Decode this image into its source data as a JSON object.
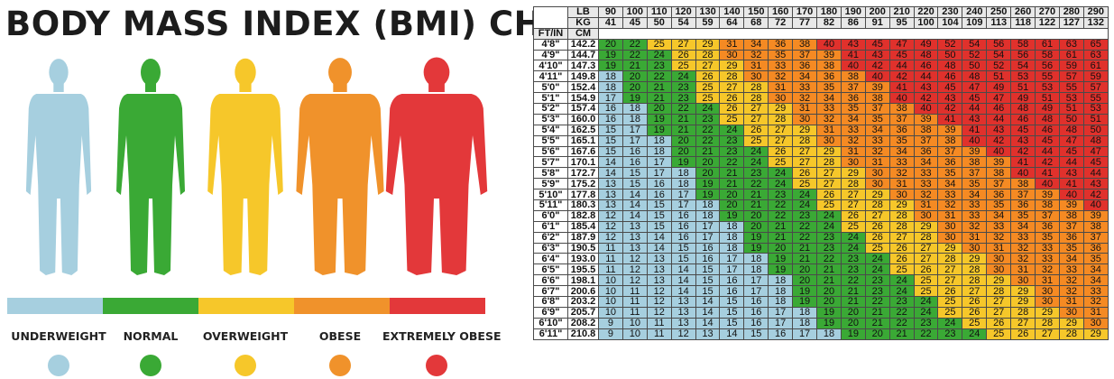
{
  "title": "BODY MASS INDEX (BMI) CHART",
  "colors": {
    "underweight": "#a6cfdf",
    "normal": "#3aa935",
    "overweight": "#f6c72a",
    "obese": "#f0922b",
    "extremely_obese": "#e3383a",
    "extreme_cell": "#e0312c",
    "obese_cell": "#f58a23"
  },
  "legend": [
    {
      "label": "UNDERWEIGHT",
      "key": "underweight"
    },
    {
      "label": "NORMAL",
      "key": "normal"
    },
    {
      "label": "OVERWEIGHT",
      "key": "overweight"
    },
    {
      "label": "OBESE",
      "key": "obese"
    },
    {
      "label": "EXTREMELY OBESE",
      "key": "extremely_obese"
    }
  ],
  "chart_data": {
    "type": "table",
    "row_header_labels": [
      "LB",
      "KG",
      "FT/IN",
      "CM"
    ],
    "weights_lb": [
      "90",
      "100",
      "110",
      "120",
      "130",
      "140",
      "150",
      "160",
      "170",
      "180",
      "190",
      "200",
      "210",
      "220",
      "230",
      "240",
      "250",
      "260",
      "270",
      "280",
      "290"
    ],
    "weights_kg": [
      "41",
      "45",
      "50",
      "54",
      "59",
      "64",
      "68",
      "72",
      "77",
      "82",
      "86",
      "91",
      "95",
      "100",
      "104",
      "109",
      "113",
      "118",
      "122",
      "127",
      "132"
    ],
    "rows": [
      {
        "ftin": "4'8\"",
        "cm": "142.2",
        "bmi": [
          20,
          22,
          25,
          27,
          29,
          31,
          34,
          36,
          38,
          40,
          43,
          45,
          47,
          49,
          52,
          54,
          56,
          58,
          61,
          63,
          65
        ]
      },
      {
        "ftin": "4'9\"",
        "cm": "144.7",
        "bmi": [
          19,
          22,
          24,
          26,
          28,
          30,
          32,
          35,
          37,
          39,
          41,
          43,
          45,
          48,
          50,
          52,
          54,
          56,
          58,
          61,
          63
        ]
      },
      {
        "ftin": "4'10\"",
        "cm": "147.3",
        "bmi": [
          19,
          21,
          23,
          25,
          27,
          29,
          31,
          33,
          36,
          38,
          40,
          42,
          44,
          46,
          48,
          50,
          52,
          54,
          56,
          59,
          61
        ]
      },
      {
        "ftin": "4'11\"",
        "cm": "149.8",
        "bmi": [
          18,
          20,
          22,
          24,
          26,
          28,
          30,
          32,
          34,
          36,
          38,
          40,
          42,
          44,
          46,
          48,
          51,
          53,
          55,
          57,
          59
        ]
      },
      {
        "ftin": "5'0\"",
        "cm": "152.4",
        "bmi": [
          18,
          20,
          21,
          23,
          25,
          27,
          28,
          31,
          33,
          35,
          37,
          39,
          41,
          43,
          45,
          47,
          49,
          51,
          53,
          55,
          57
        ]
      },
      {
        "ftin": "5'1\"",
        "cm": "154.9",
        "bmi": [
          17,
          19,
          21,
          23,
          25,
          26,
          28,
          30,
          32,
          34,
          36,
          38,
          40,
          42,
          43,
          45,
          47,
          49,
          51,
          53,
          55
        ]
      },
      {
        "ftin": "5'2\"",
        "cm": "157.4",
        "bmi": [
          16,
          18,
          20,
          22,
          24,
          26,
          27,
          29,
          31,
          33,
          35,
          37,
          38,
          40,
          42,
          44,
          46,
          48,
          49,
          51,
          53
        ]
      },
      {
        "ftin": "5'3\"",
        "cm": "160.0",
        "bmi": [
          16,
          18,
          19,
          21,
          23,
          25,
          27,
          28,
          30,
          32,
          34,
          35,
          37,
          39,
          41,
          43,
          44,
          46,
          48,
          50,
          51
        ]
      },
      {
        "ftin": "5'4\"",
        "cm": "162.5",
        "bmi": [
          15,
          17,
          19,
          21,
          22,
          24,
          26,
          27,
          29,
          31,
          33,
          34,
          36,
          38,
          39,
          41,
          43,
          45,
          46,
          48,
          50
        ]
      },
      {
        "ftin": "5'5\"",
        "cm": "165.1",
        "bmi": [
          15,
          17,
          18,
          20,
          22,
          23,
          25,
          27,
          28,
          30,
          32,
          33,
          35,
          37,
          38,
          40,
          42,
          43,
          45,
          47,
          48
        ]
      },
      {
        "ftin": "5'6\"",
        "cm": "167.6",
        "bmi": [
          15,
          16,
          18,
          20,
          21,
          23,
          24,
          26,
          27,
          29,
          31,
          32,
          34,
          36,
          37,
          39,
          40,
          42,
          44,
          45,
          47
        ]
      },
      {
        "ftin": "5'7\"",
        "cm": "170.1",
        "bmi": [
          14,
          16,
          17,
          19,
          20,
          22,
          24,
          25,
          27,
          28,
          30,
          31,
          33,
          34,
          36,
          38,
          39,
          41,
          42,
          44,
          45
        ]
      },
      {
        "ftin": "5'8\"",
        "cm": "172.7",
        "bmi": [
          14,
          15,
          17,
          18,
          20,
          21,
          23,
          24,
          26,
          27,
          29,
          30,
          32,
          33,
          35,
          37,
          38,
          40,
          41,
          43,
          44
        ]
      },
      {
        "ftin": "5'9\"",
        "cm": "175.2",
        "bmi": [
          13,
          15,
          16,
          18,
          19,
          21,
          22,
          24,
          25,
          27,
          28,
          30,
          31,
          33,
          34,
          35,
          37,
          38,
          40,
          41,
          43
        ]
      },
      {
        "ftin": "5'10\"",
        "cm": "177.8",
        "bmi": [
          13,
          14,
          16,
          17,
          19,
          20,
          21,
          23,
          24,
          26,
          27,
          29,
          30,
          32,
          33,
          34,
          36,
          37,
          39,
          40,
          42
        ]
      },
      {
        "ftin": "5'11\"",
        "cm": "180.3",
        "bmi": [
          13,
          14,
          15,
          17,
          18,
          20,
          21,
          22,
          24,
          25,
          27,
          28,
          29,
          31,
          32,
          33,
          35,
          36,
          38,
          39,
          40
        ]
      },
      {
        "ftin": "6'0\"",
        "cm": "182.8",
        "bmi": [
          12,
          14,
          15,
          16,
          18,
          19,
          20,
          22,
          23,
          24,
          26,
          27,
          28,
          30,
          31,
          33,
          34,
          35,
          37,
          38,
          39
        ]
      },
      {
        "ftin": "6'1\"",
        "cm": "185.4",
        "bmi": [
          12,
          13,
          15,
          16,
          17,
          18,
          20,
          21,
          22,
          24,
          25,
          26,
          28,
          29,
          30,
          32,
          33,
          34,
          36,
          37,
          38
        ]
      },
      {
        "ftin": "6'2\"",
        "cm": "187.9",
        "bmi": [
          12,
          13,
          14,
          16,
          17,
          18,
          19,
          21,
          22,
          23,
          24,
          26,
          27,
          28,
          30,
          31,
          32,
          33,
          35,
          36,
          37
        ]
      },
      {
        "ftin": "6'3\"",
        "cm": "190.5",
        "bmi": [
          11,
          13,
          14,
          15,
          16,
          18,
          19,
          20,
          21,
          23,
          24,
          25,
          26,
          27,
          29,
          30,
          31,
          32,
          33,
          35,
          36
        ]
      },
      {
        "ftin": "6'4\"",
        "cm": "193.0",
        "bmi": [
          11,
          12,
          13,
          15,
          16,
          17,
          18,
          19,
          21,
          22,
          23,
          24,
          26,
          27,
          28,
          29,
          30,
          32,
          33,
          34,
          35
        ]
      },
      {
        "ftin": "6'5\"",
        "cm": "195.5",
        "bmi": [
          11,
          12,
          13,
          14,
          15,
          17,
          18,
          19,
          20,
          21,
          23,
          24,
          25,
          26,
          27,
          28,
          30,
          31,
          32,
          33,
          34
        ]
      },
      {
        "ftin": "6'6\"",
        "cm": "198.1",
        "bmi": [
          10,
          12,
          13,
          14,
          15,
          16,
          17,
          18,
          20,
          21,
          22,
          23,
          24,
          25,
          27,
          28,
          29,
          30,
          31,
          32,
          34
        ]
      },
      {
        "ftin": "6'7\"",
        "cm": "200.6",
        "bmi": [
          10,
          11,
          12,
          14,
          15,
          16,
          17,
          18,
          19,
          20,
          21,
          23,
          24,
          25,
          26,
          27,
          28,
          29,
          30,
          32,
          33
        ]
      },
      {
        "ftin": "6'8\"",
        "cm": "203.2",
        "bmi": [
          10,
          11,
          12,
          13,
          14,
          15,
          16,
          18,
          19,
          20,
          21,
          22,
          23,
          24,
          25,
          26,
          27,
          29,
          30,
          31,
          32
        ]
      },
      {
        "ftin": "6'9\"",
        "cm": "205.7",
        "bmi": [
          10,
          11,
          12,
          13,
          14,
          15,
          16,
          17,
          18,
          19,
          20,
          21,
          22,
          24,
          25,
          26,
          27,
          28,
          29,
          30,
          31
        ]
      },
      {
        "ftin": "6'10\"",
        "cm": "208.2",
        "bmi": [
          9,
          10,
          11,
          13,
          14,
          15,
          16,
          17,
          18,
          19,
          20,
          21,
          22,
          23,
          24,
          25,
          26,
          27,
          28,
          29,
          30
        ]
      },
      {
        "ftin": "6'11\"",
        "cm": "210.8",
        "bmi": [
          9,
          10,
          11,
          12,
          13,
          14,
          15,
          16,
          17,
          18,
          19,
          20,
          21,
          22,
          23,
          24,
          25,
          26,
          27,
          28,
          29
        ]
      }
    ],
    "bands": [
      {
        "name": "UNDERWEIGHT",
        "below": 18.5
      },
      {
        "name": "NORMAL",
        "from": 18.5,
        "below": 25
      },
      {
        "name": "OVERWEIGHT",
        "from": 25,
        "below": 30
      },
      {
        "name": "OBESE",
        "from": 30,
        "below": 40
      },
      {
        "name": "EXTREMELY OBESE",
        "from": 40
      }
    ]
  }
}
